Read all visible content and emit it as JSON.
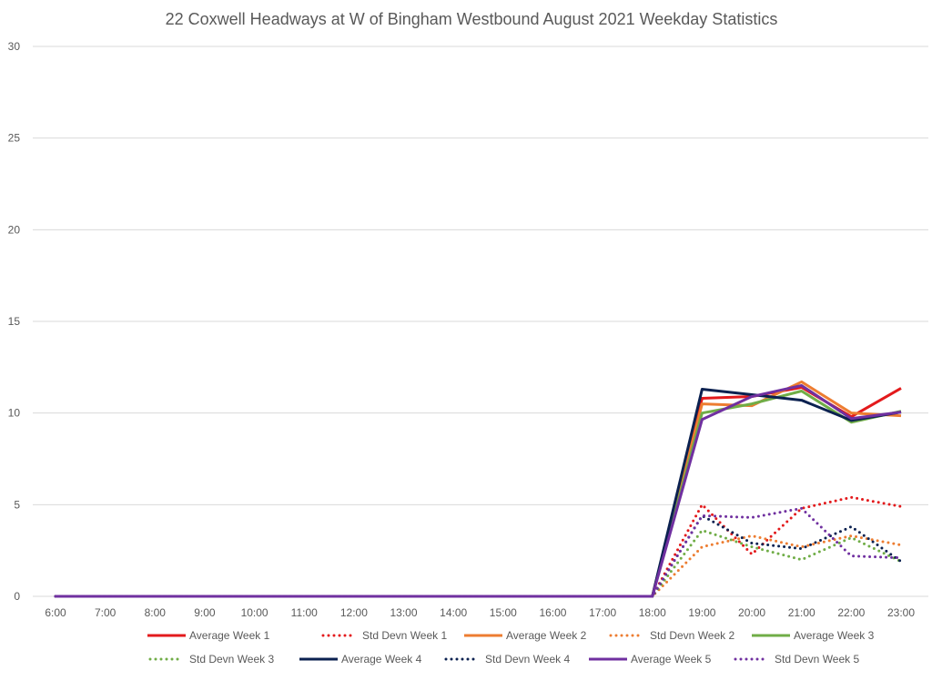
{
  "chart_data": {
    "type": "line",
    "title": "22 Coxwell Headways at W of Bingham Westbound August 2021 Weekday Statistics",
    "xlabel": "",
    "ylabel": "",
    "ylim": [
      0,
      30
    ],
    "yticks": [
      "0",
      "5",
      "10",
      "15",
      "20",
      "25",
      "30"
    ],
    "grid": true,
    "legend_position": "bottom",
    "categories": [
      "6:00",
      "7:00",
      "8:00",
      "9:00",
      "10:00",
      "11:00",
      "12:00",
      "13:00",
      "14:00",
      "15:00",
      "16:00",
      "17:00",
      "18:00",
      "19:00",
      "20:00",
      "21:00",
      "22:00",
      "23:00"
    ],
    "series": [
      {
        "name": "Average Week 1",
        "color": "#e31a1c",
        "dashed": false,
        "values": [
          0,
          0,
          0,
          0,
          0,
          0,
          0,
          0,
          0,
          0,
          0,
          0,
          0,
          10.8,
          10.9,
          11.4,
          9.8,
          11.35
        ]
      },
      {
        "name": "Std Devn Week 1",
        "color": "#e31a1c",
        "dashed": true,
        "values": [
          0,
          0,
          0,
          0,
          0,
          0,
          0,
          0,
          0,
          0,
          0,
          0,
          0,
          5.0,
          2.3,
          4.8,
          5.4,
          4.9
        ]
      },
      {
        "name": "Average Week 2",
        "color": "#ed7d31",
        "dashed": false,
        "values": [
          0,
          0,
          0,
          0,
          0,
          0,
          0,
          0,
          0,
          0,
          0,
          0,
          0,
          10.5,
          10.4,
          11.7,
          10.0,
          9.85
        ]
      },
      {
        "name": "Std Devn Week 2",
        "color": "#ed7d31",
        "dashed": true,
        "values": [
          0,
          0,
          0,
          0,
          0,
          0,
          0,
          0,
          0,
          0,
          0,
          0,
          0,
          2.7,
          3.3,
          2.7,
          3.3,
          2.8
        ]
      },
      {
        "name": "Average Week 3",
        "color": "#70ad47",
        "dashed": false,
        "values": [
          0,
          0,
          0,
          0,
          0,
          0,
          0,
          0,
          0,
          0,
          0,
          0,
          0,
          10.0,
          10.5,
          11.2,
          9.5,
          10.1
        ]
      },
      {
        "name": "Std Devn Week 3",
        "color": "#70ad47",
        "dashed": true,
        "values": [
          0,
          0,
          0,
          0,
          0,
          0,
          0,
          0,
          0,
          0,
          0,
          0,
          0,
          3.6,
          2.7,
          2.0,
          3.2,
          1.9
        ]
      },
      {
        "name": "Average Week 4",
        "color": "#0b2150",
        "dashed": false,
        "values": [
          0,
          0,
          0,
          0,
          0,
          0,
          0,
          0,
          0,
          0,
          0,
          0,
          0,
          11.3,
          11.0,
          10.7,
          9.6,
          10.05
        ]
      },
      {
        "name": "Std Devn Week 4",
        "color": "#0b2150",
        "dashed": true,
        "values": [
          0,
          0,
          0,
          0,
          0,
          0,
          0,
          0,
          0,
          0,
          0,
          0,
          0,
          4.4,
          2.9,
          2.6,
          3.8,
          1.9
        ]
      },
      {
        "name": "Average Week 5",
        "color": "#7030a0",
        "dashed": false,
        "values": [
          0,
          0,
          0,
          0,
          0,
          0,
          0,
          0,
          0,
          0,
          0,
          0,
          0,
          9.65,
          10.9,
          11.5,
          9.7,
          10.05
        ]
      },
      {
        "name": "Std Devn Week 5",
        "color": "#7030a0",
        "dashed": true,
        "values": [
          0,
          0,
          0,
          0,
          0,
          0,
          0,
          0,
          0,
          0,
          0,
          0,
          0,
          4.4,
          4.3,
          4.8,
          2.2,
          2.1
        ]
      }
    ]
  }
}
